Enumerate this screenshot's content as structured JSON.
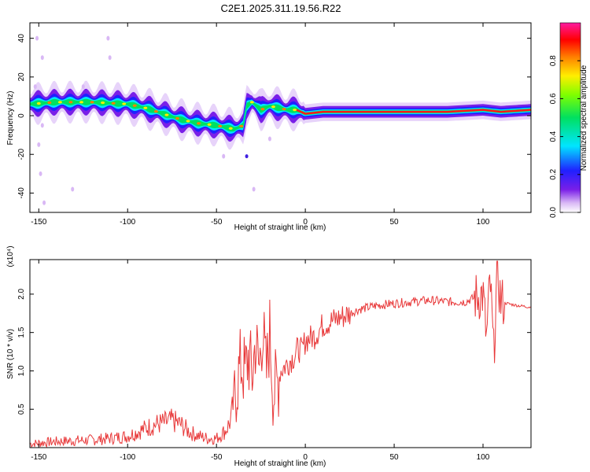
{
  "title": "C2E1.2025.311.19.56.R22",
  "chart_data": [
    {
      "type": "heatmap",
      "xlabel": "Height of straight line (km)",
      "ylabel": "Frequency (Hz)",
      "xlim": [
        -155,
        127
      ],
      "ylim": [
        -50,
        48
      ],
      "xticks": [
        -150,
        -100,
        -50,
        0,
        50,
        100
      ],
      "yticks": [
        -40,
        -20,
        0,
        20,
        40
      ],
      "colorbar": {
        "label": "Normalized spectral amplitude",
        "range": [
          0,
          1
        ],
        "ticks": [
          "0.0",
          "0.2",
          "0.4",
          "0.6",
          "0.8"
        ],
        "colormap": "rainbow (violet → blue → cyan → green → yellow → red)"
      },
      "ridge": {
        "x": [
          -155,
          -140,
          -120,
          -100,
          -90,
          -80,
          -70,
          -60,
          -50,
          -45,
          -40,
          -35,
          -33,
          -30,
          -25,
          -20,
          -15,
          -10,
          -5,
          0,
          10,
          20,
          40,
          60,
          80,
          100,
          110,
          127
        ],
        "y": [
          6,
          7,
          7,
          6,
          4,
          1,
          -2,
          -4,
          -5,
          -6,
          -7,
          -5,
          5,
          7,
          3,
          5,
          4,
          3,
          3,
          1,
          2,
          2,
          2,
          2,
          2,
          3,
          2,
          3
        ]
      }
    },
    {
      "type": "line",
      "xlabel": "Height of straight line (km)",
      "ylabel": "SNR (10 * v/v)",
      "y_multiplier": "(x10⁴)",
      "xlim": [
        -155,
        127
      ],
      "ylim": [
        0,
        2.45
      ],
      "xticks": [
        -150,
        -100,
        -50,
        0,
        50,
        100
      ],
      "yticks": [
        0.5,
        1.0,
        1.5,
        2.0
      ],
      "color": "#e8393a",
      "series": [
        {
          "x": [
            -155,
            -140,
            -120,
            -110,
            -100,
            -95,
            -90,
            -85,
            -80,
            -75,
            -70,
            -65,
            -60,
            -55,
            -50,
            -45,
            -42,
            -40,
            -38,
            -36,
            -34,
            -32,
            -30,
            -28,
            -26,
            -24,
            -22,
            -20,
            -18,
            -16,
            -14,
            -12,
            -10,
            -8,
            -6,
            -4,
            -2,
            0,
            5,
            10,
            15,
            20,
            25,
            30,
            40,
            50,
            60,
            70,
            80,
            90,
            95,
            100,
            102,
            104,
            106,
            108,
            110,
            115,
            120,
            127
          ],
          "y": [
            0.05,
            0.08,
            0.1,
            0.12,
            0.15,
            0.2,
            0.25,
            0.3,
            0.32,
            0.35,
            0.3,
            0.2,
            0.15,
            0.12,
            0.12,
            0.22,
            0.35,
            0.65,
            0.9,
            1.1,
            0.95,
            1.2,
            0.9,
            1.4,
            1.0,
            1.6,
            0.9,
            1.5,
            0.7,
            0.8,
            1.0,
            1.05,
            1.1,
            1.15,
            1.2,
            1.3,
            1.25,
            1.4,
            1.45,
            1.6,
            1.65,
            1.7,
            1.75,
            1.8,
            1.85,
            1.88,
            1.9,
            1.92,
            1.9,
            1.9,
            1.95,
            2.0,
            1.4,
            2.2,
            1.2,
            2.3,
            1.9,
            1.87,
            1.85,
            1.83
          ]
        }
      ]
    }
  ]
}
